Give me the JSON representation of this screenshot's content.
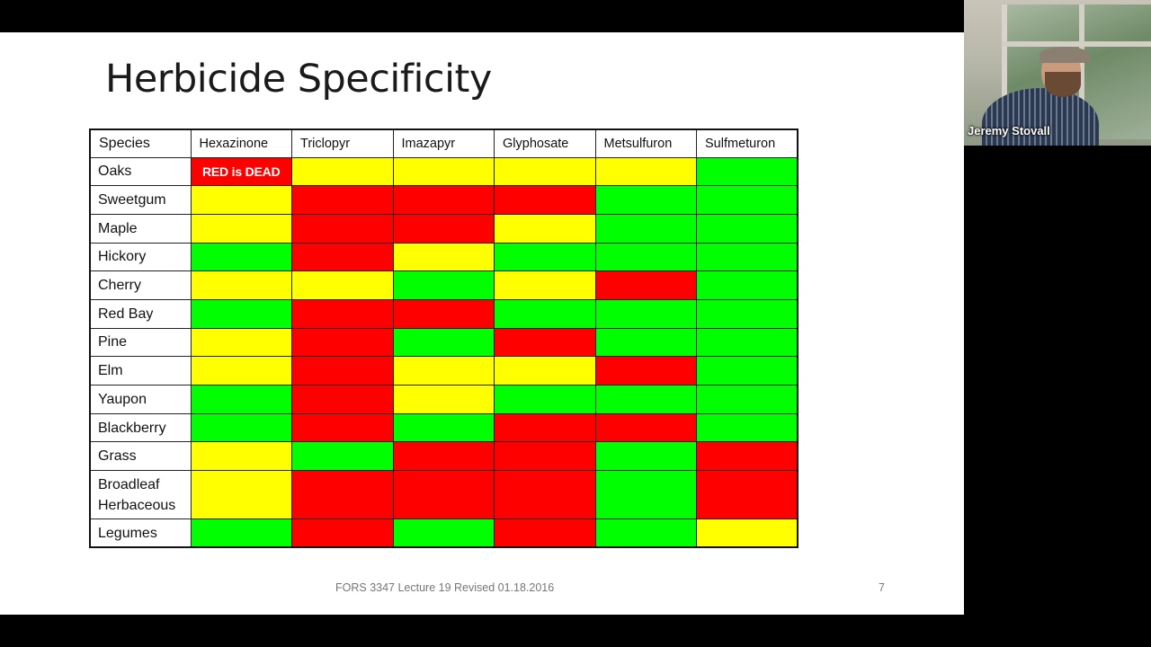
{
  "slide": {
    "title": "Herbicide Specificity",
    "footer": "FORS 3347 Lecture 19 Revised 01.18.2016",
    "page_number": "7",
    "colors": {
      "red": "#ff0000",
      "yellow": "#ffff00",
      "green": "#00ff00"
    },
    "table": {
      "header": [
        "Species",
        "Hexazinone",
        "Triclopyr",
        "Imazapyr",
        "Glyphosate",
        "Metsulfuron",
        "Sulfmeturon"
      ],
      "rows": [
        {
          "species": "Oaks",
          "cells": [
            "red",
            "yellow",
            "yellow",
            "yellow",
            "yellow",
            "green"
          ],
          "note": "RED is DEAD"
        },
        {
          "species": "Sweetgum",
          "cells": [
            "yellow",
            "red",
            "red",
            "red",
            "green",
            "green"
          ]
        },
        {
          "species": "Maple",
          "cells": [
            "yellow",
            "red",
            "red",
            "yellow",
            "green",
            "green"
          ]
        },
        {
          "species": "Hickory",
          "cells": [
            "green",
            "red",
            "yellow",
            "green",
            "green",
            "green"
          ]
        },
        {
          "species": "Cherry",
          "cells": [
            "yellow",
            "yellow",
            "green",
            "yellow",
            "red",
            "green"
          ]
        },
        {
          "species": "Red Bay",
          "cells": [
            "green",
            "red",
            "red",
            "green",
            "green",
            "green"
          ]
        },
        {
          "species": "Pine",
          "cells": [
            "yellow",
            "red",
            "green",
            "red",
            "green",
            "green"
          ]
        },
        {
          "species": "Elm",
          "cells": [
            "yellow",
            "red",
            "yellow",
            "yellow",
            "red",
            "green"
          ]
        },
        {
          "species": "Yaupon",
          "cells": [
            "green",
            "red",
            "yellow",
            "green",
            "green",
            "green"
          ]
        },
        {
          "species": "Blackberry",
          "cells": [
            "green",
            "red",
            "green",
            "red",
            "red",
            "green"
          ]
        },
        {
          "species": "Grass",
          "cells": [
            "yellow",
            "green",
            "red",
            "red",
            "green",
            "red"
          ]
        },
        {
          "species_line1": "Broadleaf",
          "species_line2": "Herbaceous",
          "species": "Broadleaf Herbaceous",
          "cells": [
            "yellow",
            "red",
            "red",
            "red",
            "green",
            "red"
          ]
        },
        {
          "species": "Legumes",
          "cells": [
            "green",
            "red",
            "green",
            "red",
            "green",
            "yellow"
          ]
        }
      ]
    }
  },
  "video": {
    "participant_name": "Jeremy Stovall"
  }
}
